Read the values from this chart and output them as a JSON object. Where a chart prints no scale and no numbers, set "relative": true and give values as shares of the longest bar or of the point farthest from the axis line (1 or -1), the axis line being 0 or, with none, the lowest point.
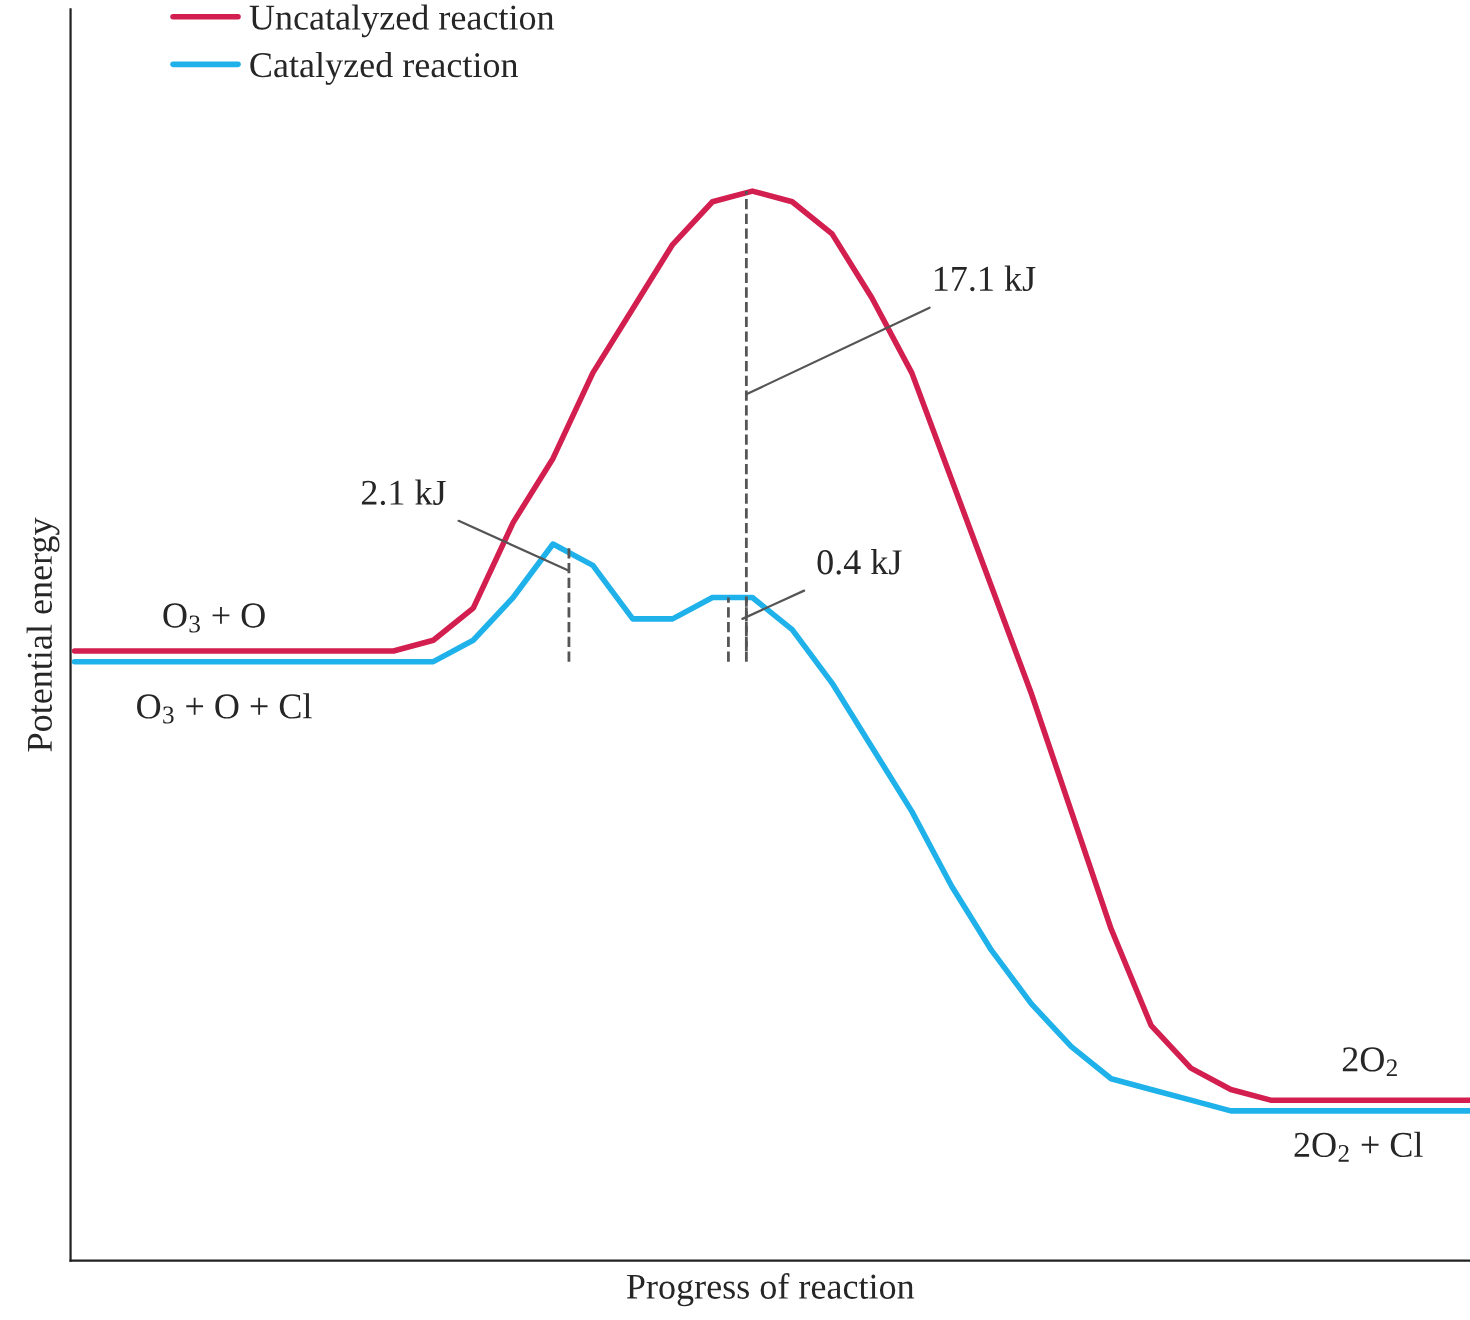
{
  "chart_data": {
    "type": "line",
    "relative": true,
    "xlabel": "Progress of reaction",
    "ylabel": "Potential energy",
    "legend": "top left",
    "categories": [
      null,
      null,
      null,
      null,
      null,
      null,
      null,
      null,
      null,
      null,
      null,
      null,
      null,
      null,
      null,
      null,
      null,
      null,
      null,
      null,
      null,
      null,
      null,
      null,
      null,
      null,
      null,
      null,
      null,
      null,
      null,
      null,
      null,
      null,
      null,
      null
    ],
    "series": [
      {
        "name": "Uncatalyzed reaction",
        "color": "#d31f4f",
        "values": [
          0.57,
          0.57,
          0.57,
          0.57,
          0.57,
          0.57,
          0.57,
          0.57,
          0.57,
          0.58,
          0.61,
          0.69,
          0.75,
          0.83,
          0.89,
          0.95,
          0.99,
          1.0,
          0.99,
          0.96,
          0.9,
          0.83,
          0.73,
          0.63,
          0.53,
          0.42,
          0.31,
          0.22,
          0.18,
          0.16,
          0.15,
          0.15,
          0.15,
          0.15,
          0.15,
          0.15
        ]
      },
      {
        "name": "Catalyzed reaction",
        "color": "#1fb1e9",
        "values": [
          0.56,
          0.56,
          0.56,
          0.56,
          0.56,
          0.56,
          0.56,
          0.56,
          0.56,
          0.56,
          0.58,
          0.62,
          0.67,
          0.65,
          0.6,
          0.6,
          0.62,
          0.62,
          0.59,
          0.54,
          0.48,
          0.42,
          0.35,
          0.29,
          0.24,
          0.2,
          0.17,
          0.16,
          0.15,
          0.14,
          0.14,
          0.14,
          0.14,
          0.14,
          0.14,
          0.14
        ]
      }
    ],
    "annotations": [
      "O$_{3}$ + O",
      "O$_{3}$ + O + Cl",
      "2O$_{2}$",
      "2O$_{2}$ + Cl",
      "2.1 kJ",
      "17.1 kJ",
      "0.4 kJ"
    ]
  }
}
